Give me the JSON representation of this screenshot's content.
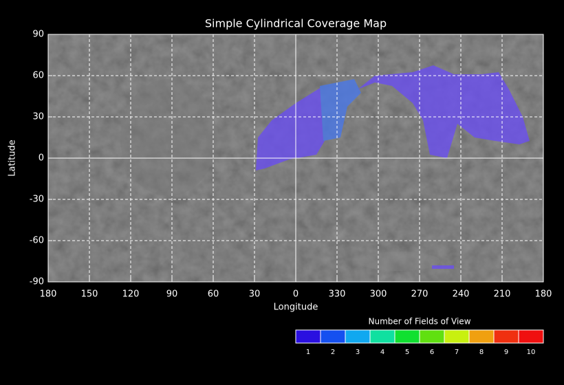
{
  "chart_data": {
    "type": "map",
    "title": "Simple Cylindrical Coverage Map",
    "x_label": "Longitude",
    "y_label": "Latitude",
    "xlim": [
      -180,
      180
    ],
    "ylim": [
      -90,
      90
    ],
    "xticks": [
      {
        "value": -180,
        "label": "180"
      },
      {
        "value": -150,
        "label": "150"
      },
      {
        "value": -120,
        "label": "120"
      },
      {
        "value": -90,
        "label": "90"
      },
      {
        "value": -60,
        "label": "60"
      },
      {
        "value": -30,
        "label": "30"
      },
      0,
      {
        "value": 30,
        "label": "330"
      },
      {
        "value": 60,
        "label": "300"
      },
      {
        "value": 90,
        "label": "270"
      },
      {
        "value": 120,
        "label": "240"
      },
      {
        "value": 150,
        "label": "210"
      },
      {
        "value": 180,
        "label": "180"
      }
    ],
    "yticks": [
      90,
      60,
      30,
      0,
      -30,
      -60,
      -90
    ],
    "grid": true,
    "colorbar": {
      "title": "Number of Fields of View",
      "values": [
        1,
        2,
        3,
        4,
        5,
        6,
        7,
        8,
        9,
        10
      ],
      "colors": [
        "#2a10e0",
        "#1550f0",
        "#10a8f0",
        "#10e0a0",
        "#10e030",
        "#60e010",
        "#c8f010",
        "#f0a010",
        "#f03010",
        "#f01010"
      ]
    }
  }
}
